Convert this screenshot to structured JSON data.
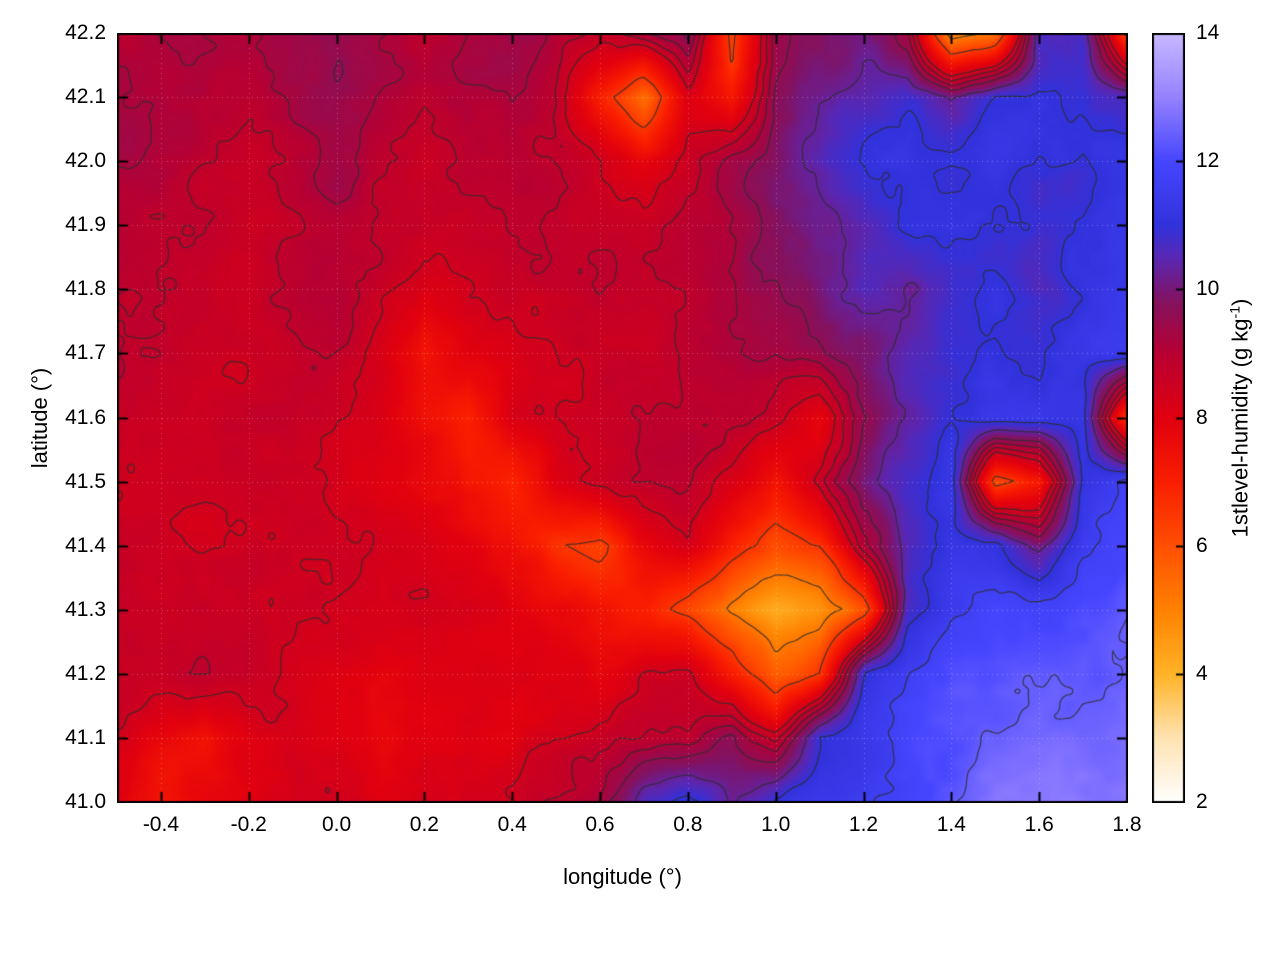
{
  "figure": {
    "background": "#ffffff",
    "colorbar_label_main": "1stlevel-humidity (g kg",
    "colorbar_label_sup": "-1",
    "colorbar_label_close": ")"
  },
  "chart_data": {
    "type": "heatmap",
    "title": "",
    "xlabel": "longitude (°)",
    "ylabel": "latitude (°)",
    "x_range": [
      -0.5,
      1.8
    ],
    "y_range": [
      41.0,
      42.2
    ],
    "x_ticks": {
      "values": [
        -0.4,
        -0.2,
        0.0,
        0.2,
        0.4,
        0.6,
        0.8,
        1.0,
        1.2,
        1.4,
        1.6,
        1.8
      ],
      "labels": [
        "-0.4",
        "-0.2",
        "0.0",
        "0.2",
        "0.4",
        "0.6",
        "0.8",
        "1.0",
        "1.2",
        "1.4",
        "1.6",
        "1.8"
      ]
    },
    "y_ticks": {
      "values": [
        41.0,
        41.1,
        41.2,
        41.3,
        41.4,
        41.5,
        41.6,
        41.7,
        41.8,
        41.9,
        42.0,
        42.1,
        42.2
      ],
      "labels": [
        "41.0",
        "41.1",
        "41.2",
        "41.3",
        "41.4",
        "41.5",
        "41.6",
        "41.7",
        "41.8",
        "41.9",
        "42.0",
        "42.1",
        "42.2"
      ]
    },
    "colorbar": {
      "label": "1stlevel-humidity (g kg^-1)",
      "range": [
        2,
        14
      ],
      "ticks": [
        2,
        4,
        6,
        8,
        10,
        12,
        14
      ],
      "tick_labels": [
        "2",
        "4",
        "6",
        "8",
        "10",
        "12",
        "14"
      ],
      "stops": [
        [
          2.0,
          "#ffffff"
        ],
        [
          3.0,
          "#ffe4b4"
        ],
        [
          4.0,
          "#ffb428"
        ],
        [
          5.0,
          "#ff8200"
        ],
        [
          6.0,
          "#ff5000"
        ],
        [
          7.0,
          "#fa1e00"
        ],
        [
          8.0,
          "#e10010"
        ],
        [
          9.0,
          "#b90032"
        ],
        [
          9.8,
          "#86125e"
        ],
        [
          10.5,
          "#5a28b4"
        ],
        [
          11.0,
          "#3232dc"
        ],
        [
          12.0,
          "#4646ff"
        ],
        [
          13.0,
          "#9682ff"
        ],
        [
          14.0,
          "#c8b9ff"
        ]
      ]
    },
    "grid": {
      "note": "approximate 1st-level humidity field (g/kg), rows north (42.2) to south (41.0), cols west (-0.5) to east (1.8), step 0.1 deg",
      "nx": 24,
      "ny": 13,
      "values": [
        [
          9.3,
          9.4,
          9.2,
          9.1,
          9.3,
          9.4,
          9.1,
          8.9,
          9.2,
          9.4,
          8.9,
          8.6,
          9.1,
          9.6,
          6.2,
          9.4,
          9.8,
          10.1,
          9.4,
          4.8,
          5.6,
          10.6,
          10.9,
          6.4
        ],
        [
          9.3,
          9.2,
          9.1,
          9.0,
          9.2,
          9.3,
          9.0,
          8.8,
          9.0,
          9.1,
          8.6,
          6.8,
          5.4,
          8.2,
          7.0,
          9.6,
          10.0,
          10.4,
          10.7,
          10.2,
          10.9,
          11.1,
          10.9,
          10.6
        ],
        [
          9.2,
          9.1,
          9.0,
          8.8,
          9.0,
          9.2,
          8.8,
          8.5,
          8.8,
          8.9,
          8.6,
          8.3,
          7.8,
          8.4,
          9.2,
          9.7,
          10.3,
          10.8,
          11.0,
          10.8,
          11.1,
          10.9,
          10.7,
          11.0
        ],
        [
          9.1,
          9.0,
          8.8,
          8.6,
          8.8,
          9.0,
          8.7,
          8.4,
          8.6,
          8.8,
          8.8,
          8.6,
          8.4,
          8.7,
          9.1,
          9.8,
          10.1,
          10.5,
          11.0,
          11.2,
          10.9,
          10.7,
          11.0,
          11.2
        ],
        [
          9.0,
          8.8,
          8.7,
          8.5,
          8.7,
          8.9,
          8.5,
          7.9,
          8.3,
          8.6,
          8.7,
          8.8,
          8.6,
          8.8,
          9.2,
          9.5,
          10.0,
          10.4,
          10.2,
          10.8,
          11.0,
          10.6,
          11.0,
          11.3
        ],
        [
          8.9,
          8.7,
          8.6,
          8.5,
          8.6,
          8.7,
          8.2,
          7.3,
          8.0,
          8.4,
          8.6,
          8.8,
          8.8,
          9.0,
          9.3,
          9.1,
          9.5,
          10.0,
          10.6,
          11.0,
          11.2,
          11.0,
          11.2,
          11.5
        ],
        [
          8.8,
          8.6,
          8.5,
          8.6,
          8.7,
          8.6,
          8.3,
          7.6,
          7.0,
          8.2,
          8.5,
          8.7,
          8.9,
          9.0,
          8.8,
          8.4,
          7.6,
          9.6,
          10.6,
          11.1,
          11.4,
          11.2,
          11.0,
          6.3
        ],
        [
          8.7,
          8.6,
          8.5,
          8.6,
          8.6,
          8.5,
          8.2,
          7.9,
          7.2,
          6.9,
          8.1,
          8.5,
          8.8,
          8.8,
          8.0,
          7.1,
          8.6,
          10.1,
          11.0,
          11.3,
          6.0,
          7.0,
          11.1,
          11.6
        ],
        [
          8.6,
          8.5,
          8.5,
          8.6,
          8.5,
          8.4,
          8.3,
          8.2,
          8.0,
          7.6,
          6.9,
          6.6,
          7.8,
          8.5,
          7.1,
          6.1,
          6.6,
          9.2,
          10.6,
          11.2,
          11.0,
          10.0,
          11.6,
          12.0
        ],
        [
          8.5,
          8.5,
          8.6,
          8.7,
          8.5,
          8.3,
          8.2,
          8.3,
          8.2,
          8.0,
          7.8,
          7.4,
          7.0,
          6.4,
          5.2,
          4.4,
          4.8,
          6.0,
          10.8,
          11.5,
          11.8,
          11.6,
          12.0,
          12.3
        ],
        [
          8.4,
          8.5,
          8.7,
          8.6,
          8.4,
          8.2,
          8.0,
          8.2,
          8.3,
          8.2,
          8.0,
          7.8,
          8.2,
          8.4,
          7.2,
          5.8,
          6.6,
          10.9,
          11.5,
          11.8,
          12.0,
          12.2,
          12.3,
          12.5
        ],
        [
          8.3,
          7.6,
          7.2,
          7.9,
          8.2,
          8.0,
          7.8,
          8.0,
          8.2,
          8.0,
          8.3,
          8.4,
          8.6,
          8.8,
          9.6,
          8.6,
          11.0,
          11.3,
          11.8,
          12.0,
          12.3,
          12.5,
          12.6,
          12.7
        ],
        [
          8.1,
          7.3,
          7.6,
          8.0,
          8.3,
          8.2,
          8.0,
          8.2,
          8.4,
          8.3,
          8.6,
          9.0,
          10.4,
          11.0,
          10.0,
          11.0,
          11.3,
          11.6,
          12.0,
          12.3,
          12.5,
          12.6,
          12.7,
          12.8
        ]
      ]
    },
    "contour_levels": [
      5.2,
      6.5,
      8.4,
      8.8,
      9.2,
      9.6,
      10.3,
      11.0,
      11.7,
      12.4
    ],
    "contour_color": "#2d2d2d",
    "legend": "none",
    "grid_lines": "dotted"
  }
}
